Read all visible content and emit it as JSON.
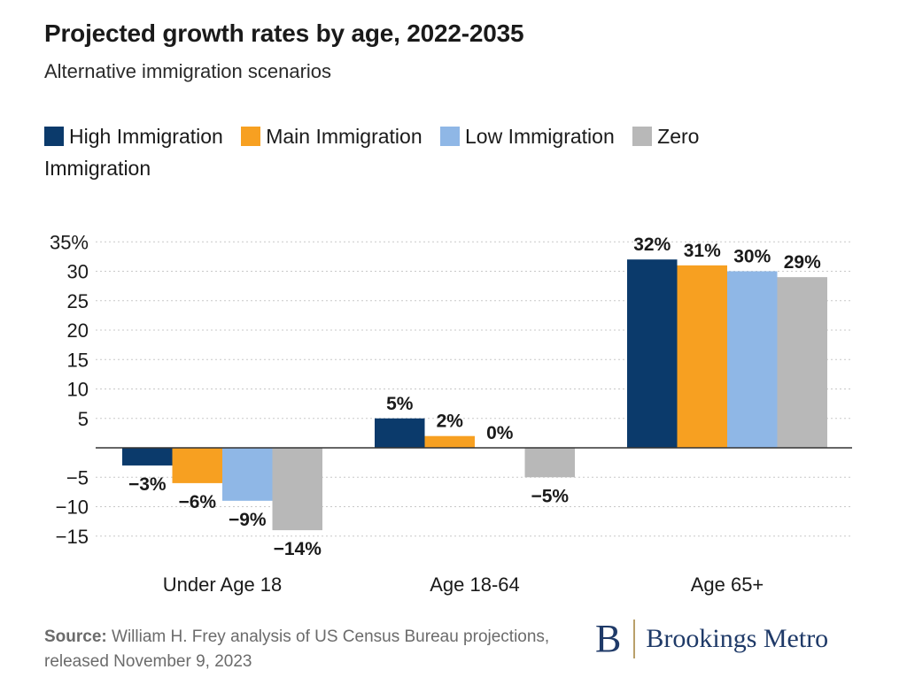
{
  "title": "Projected growth rates by age, 2022-2035",
  "subtitle": "Alternative immigration scenarios",
  "colors": {
    "high": "#0b3a6b",
    "main": "#f7a021",
    "low": "#8fb7e6",
    "zero": "#b8b8b8",
    "grid": "#c8c8c8",
    "zero_line": "#333333"
  },
  "chart_data": {
    "type": "bar",
    "categories": [
      "Under Age 18",
      "Age 18-64",
      "Age 65+"
    ],
    "series": [
      {
        "name": "High Immigration",
        "values": [
          -3,
          5,
          32
        ],
        "labels": [
          "−3%",
          "5%",
          "32%"
        ]
      },
      {
        "name": "Main Immigration",
        "values": [
          -6,
          2,
          31
        ],
        "labels": [
          "−6%",
          "2%",
          "31%"
        ]
      },
      {
        "name": "Low Immigration",
        "values": [
          -9,
          0,
          30
        ],
        "labels": [
          "−9%",
          "0%",
          "30%"
        ]
      },
      {
        "name": "Zero Immigration",
        "values": [
          -14,
          -5,
          29
        ],
        "labels": [
          "−14%",
          "−5%",
          "29%"
        ]
      }
    ],
    "yticks": [
      35,
      30,
      25,
      20,
      15,
      10,
      5,
      -5,
      -10,
      -15
    ],
    "ytick_labels": [
      "35%",
      "30",
      "25",
      "20",
      "15",
      "10",
      "5",
      "−5",
      "−10",
      "−15"
    ],
    "ylim": [
      -15,
      35
    ],
    "grid": true,
    "legend_position": "top"
  },
  "footer": {
    "source_label": "Source:",
    "source_text": " William H. Frey analysis of US Census Bureau projections, released November 9, 2023"
  },
  "logo": {
    "mark": "B",
    "text": "Brookings Metro"
  }
}
